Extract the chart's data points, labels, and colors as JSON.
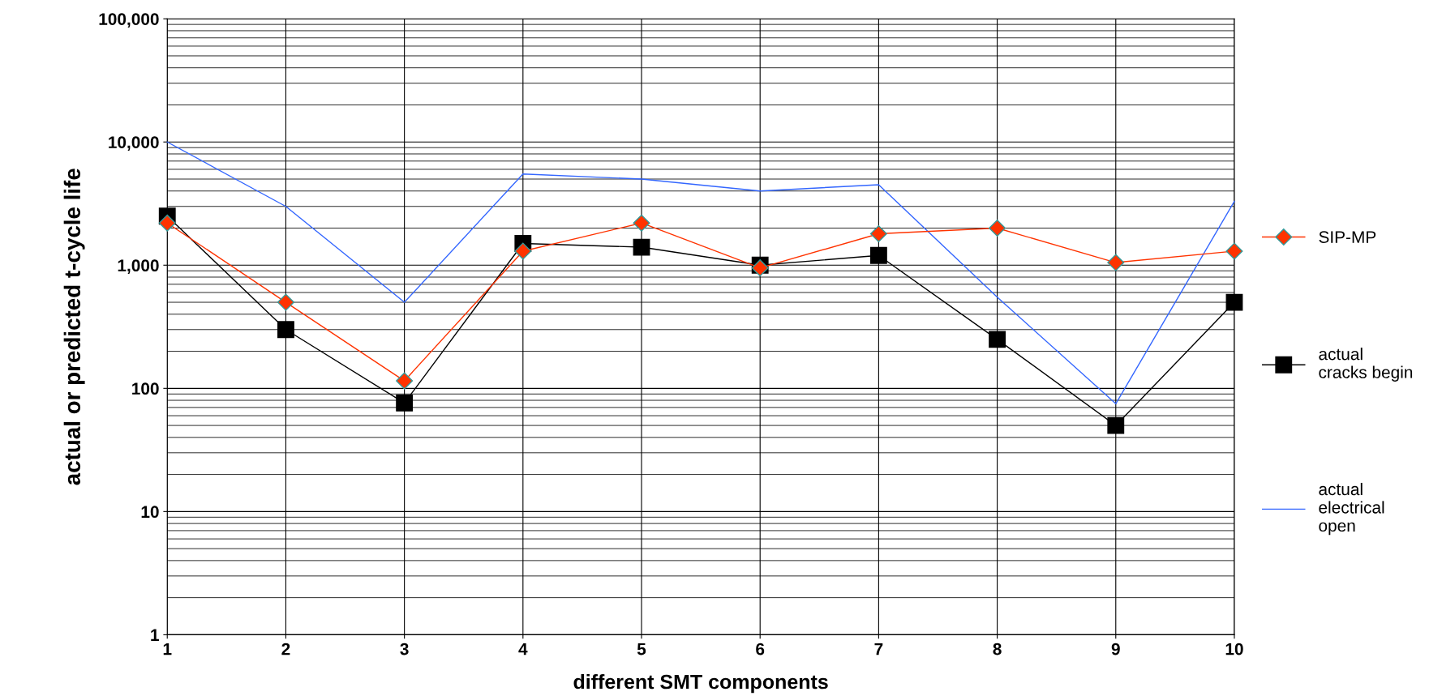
{
  "chart_data": {
    "type": "line",
    "xlabel": "different SMT components",
    "ylabel": "actual or predicted t-cycle life",
    "categories": [
      "1",
      "2",
      "3",
      "4",
      "5",
      "6",
      "7",
      "8",
      "9",
      "10"
    ],
    "series": [
      {
        "name": "SIP-MP",
        "color": "#ff3300",
        "marker": "diamond",
        "values": [
          2200,
          500,
          115,
          1300,
          2200,
          950,
          1800,
          2000,
          1050,
          1300
        ]
      },
      {
        "name": "actual\ncracks begin",
        "color": "#000000",
        "marker": "square",
        "values": [
          2500,
          300,
          76,
          1500,
          1400,
          1000,
          1200,
          250,
          50,
          500
        ]
      },
      {
        "name": "actual\nelectrical\nopen",
        "color": "#3366ff",
        "marker": "none",
        "values": [
          10000,
          3000,
          500,
          5500,
          5000,
          4000,
          4500,
          550,
          75,
          3300
        ]
      }
    ],
    "log": "y",
    "ylim": [
      1,
      100000
    ],
    "yticks": [
      1,
      10,
      100,
      {
        "value": 1000,
        "label": "1,000"
      },
      {
        "value": 10000,
        "label": "10,000"
      },
      {
        "value": 100000,
        "label": "100,000"
      }
    ],
    "grid": true,
    "legend": "right"
  }
}
